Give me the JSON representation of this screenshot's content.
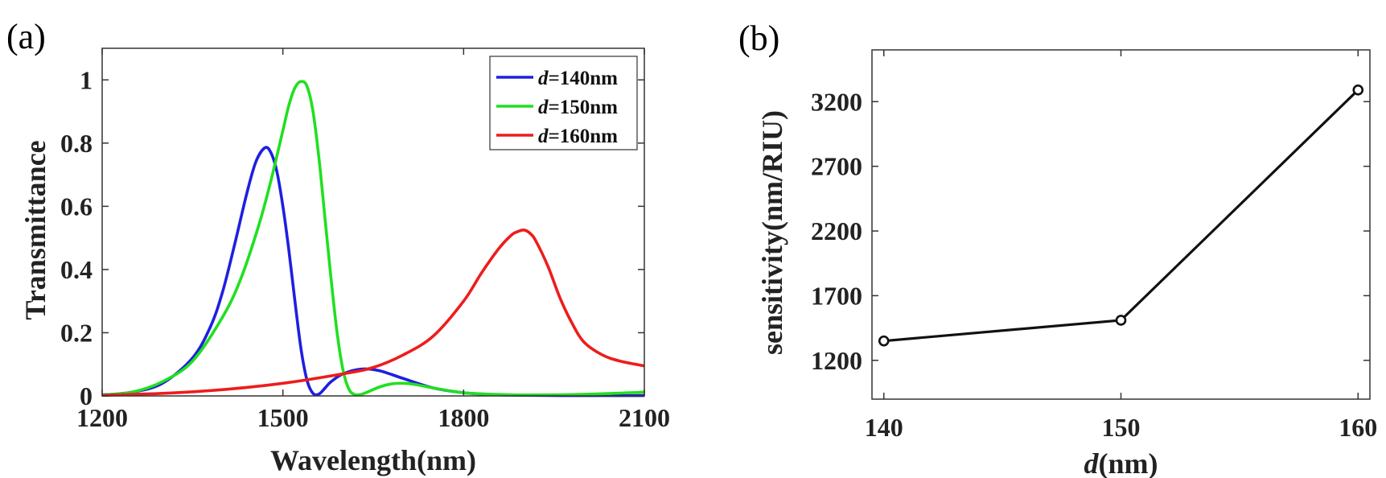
{
  "panels": {
    "a_label": "(a)",
    "b_label": "(b)"
  },
  "chart_data": [
    {
      "type": "line",
      "xlabel": "Wavelength(nm)",
      "ylabel": "Transmittance",
      "xlim": [
        1200,
        2100
      ],
      "ylim": [
        0,
        1.1
      ],
      "xticks": [
        1200,
        1500,
        1800,
        2100
      ],
      "xtick_labels": [
        "1200",
        "1500",
        "1800",
        "2100"
      ],
      "yticks": [
        0,
        0.2,
        0.4,
        0.6,
        0.8,
        1
      ],
      "ytick_labels": [
        "0",
        "0.2",
        "0.4",
        "0.6",
        "0.8",
        "1"
      ],
      "legend_position": "top-right",
      "series": [
        {
          "name_var": "d",
          "name_rest": "=140nm",
          "color": "#1f1fe0",
          "x": [
            1200,
            1250,
            1300,
            1350,
            1380,
            1400,
            1420,
            1440,
            1455,
            1470,
            1480,
            1490,
            1500,
            1510,
            1520,
            1530,
            1540,
            1550,
            1560,
            1570,
            1580,
            1600,
            1630,
            1660,
            1700,
            1750,
            1800,
            1850,
            1900,
            2000,
            2100
          ],
          "y": [
            0.003,
            0.012,
            0.04,
            0.12,
            0.22,
            0.33,
            0.48,
            0.64,
            0.74,
            0.785,
            0.77,
            0.71,
            0.6,
            0.46,
            0.3,
            0.15,
            0.05,
            0.008,
            0.006,
            0.025,
            0.045,
            0.07,
            0.085,
            0.08,
            0.055,
            0.025,
            0.01,
            0.004,
            0.002,
            0.001,
            0.001
          ]
        },
        {
          "name_var": "d",
          "name_rest": "=150nm",
          "color": "#20e020",
          "x": [
            1200,
            1250,
            1300,
            1350,
            1400,
            1430,
            1460,
            1480,
            1500,
            1510,
            1520,
            1530,
            1540,
            1550,
            1560,
            1570,
            1580,
            1590,
            1600,
            1610,
            1620,
            1630,
            1640,
            1660,
            1680,
            1700,
            1720,
            1750,
            1800,
            1850,
            1900,
            2000,
            2100
          ],
          "y": [
            0.003,
            0.012,
            0.045,
            0.11,
            0.25,
            0.37,
            0.54,
            0.68,
            0.84,
            0.92,
            0.975,
            0.995,
            0.98,
            0.9,
            0.75,
            0.56,
            0.37,
            0.2,
            0.08,
            0.02,
            0.004,
            0.005,
            0.012,
            0.028,
            0.038,
            0.04,
            0.036,
            0.025,
            0.01,
            0.005,
            0.003,
            0.005,
            0.012
          ]
        },
        {
          "name_var": "d",
          "name_rest": "=160nm",
          "color": "#ee1c1c",
          "x": [
            1200,
            1300,
            1400,
            1500,
            1600,
            1650,
            1700,
            1750,
            1800,
            1830,
            1860,
            1880,
            1890,
            1900,
            1910,
            1920,
            1940,
            1960,
            1980,
            2000,
            2030,
            2060,
            2100
          ],
          "y": [
            0.002,
            0.008,
            0.02,
            0.04,
            0.07,
            0.09,
            0.13,
            0.19,
            0.3,
            0.39,
            0.47,
            0.51,
            0.52,
            0.525,
            0.515,
            0.49,
            0.41,
            0.31,
            0.23,
            0.17,
            0.13,
            0.11,
            0.095
          ]
        }
      ]
    },
    {
      "type": "line",
      "xlabel_var": "d",
      "xlabel_rest": "(nm)",
      "ylabel": "sensitivity(nm/RIU)",
      "xlim": [
        139.5,
        160.5
      ],
      "ylim": [
        900,
        3600
      ],
      "xticks": [
        140,
        150,
        160
      ],
      "xtick_labels": [
        "140",
        "150",
        "160"
      ],
      "yticks": [
        1200,
        1700,
        2200,
        2700,
        3200
      ],
      "ytick_labels": [
        "1200",
        "1700",
        "2200",
        "2700",
        "3200"
      ],
      "series": [
        {
          "color": "#111111",
          "x": [
            140,
            150,
            160
          ],
          "y": [
            1350,
            1510,
            3290
          ]
        }
      ]
    }
  ]
}
